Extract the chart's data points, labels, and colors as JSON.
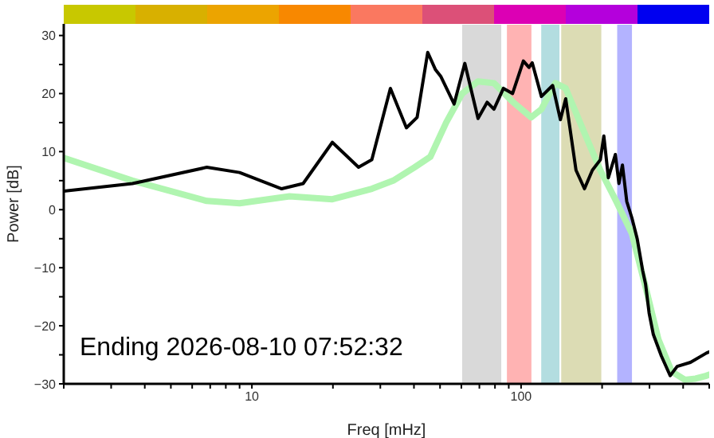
{
  "chart_data": {
    "type": "line",
    "xlabel": "Freq [mHz]",
    "ylabel": "Power [dB]",
    "log": "x",
    "xlim": [
      2,
      500
    ],
    "xticks": [
      {
        "value": 2,
        "label": null
      },
      {
        "value": 3,
        "label": null
      },
      {
        "value": 4,
        "label": null
      },
      {
        "value": 5,
        "label": null
      },
      {
        "value": 6,
        "label": null
      },
      {
        "value": 7,
        "label": null
      },
      {
        "value": 8,
        "label": null
      },
      {
        "value": 9,
        "label": null
      },
      10,
      {
        "value": 20,
        "label": null
      },
      {
        "value": 30,
        "label": null
      },
      {
        "value": 40,
        "label": null
      },
      {
        "value": 50,
        "label": null
      },
      {
        "value": 60,
        "label": null
      },
      {
        "value": 70,
        "label": null
      },
      {
        "value": 80,
        "label": null
      },
      {
        "value": 90,
        "label": null
      },
      100,
      {
        "value": 200,
        "label": null
      },
      {
        "value": 300,
        "label": null
      },
      {
        "value": 400,
        "label": null
      },
      {
        "value": 500,
        "label": null
      }
    ],
    "ylim": [
      -30,
      32
    ],
    "yticks": [
      -30,
      {
        "value": -25,
        "label": null
      },
      -20,
      {
        "value": -15,
        "label": null
      },
      -10,
      {
        "value": -5,
        "label": null
      },
      0,
      {
        "value": 5,
        "label": null
      },
      10,
      {
        "value": 15,
        "label": null
      },
      20,
      {
        "value": 25,
        "label": null
      },
      30
    ],
    "grid": false,
    "legend": false,
    "marker": "none",
    "line_style": "solid",
    "bands": [
      {
        "axis": "x",
        "from": 60,
        "to": 85,
        "color": "#d9d9d9"
      },
      {
        "axis": "x",
        "from": 88,
        "to": 110,
        "color": "#ffb3b3"
      },
      {
        "axis": "x",
        "from": 118,
        "to": 140,
        "color": "#b3dde0"
      },
      {
        "axis": "x",
        "from": 140,
        "to": 200,
        "color": "#dcdcb4"
      },
      {
        "axis": "x",
        "from": 226,
        "to": 260,
        "color": "#b3b3ff"
      }
    ],
    "series": [
      {
        "color": "#b0f5b0",
        "x": [
          2,
          3.6,
          6.8,
          9,
          13.8,
          19.9,
          27.9,
          33.5,
          40.2,
          46,
          52.7,
          60.4,
          69.2,
          79.3,
          93,
          109,
          119,
          134,
          146.5,
          172,
          197,
          226,
          258,
          290,
          324,
          363,
          406,
          445,
          488,
          500
        ],
        "values": [
          8.9,
          5,
          1.5,
          1.1,
          2.3,
          1.8,
          3.6,
          5,
          7.3,
          9.1,
          15,
          20,
          22.1,
          21.8,
          18.6,
          15.9,
          17.3,
          21.8,
          20.9,
          13.2,
          6.8,
          1.4,
          -4.1,
          -13.3,
          -22.4,
          -27.9,
          -29.3,
          -29.1,
          -28.6,
          -28.4
        ]
      },
      {
        "color": "#000000",
        "x": [
          2,
          3.6,
          6.8,
          9,
          12.9,
          15.5,
          19.9,
          24.9,
          27.9,
          32.7,
          37.5,
          41.1,
          45,
          48.1,
          50.4,
          56.4,
          61.8,
          69.2,
          74.8,
          79.3,
          86,
          93,
          102,
          107,
          110,
          119,
          131,
          140,
          146.5,
          160,
          172,
          184,
          197,
          203,
          211,
          224,
          231,
          238,
          247,
          258,
          270,
          283,
          290,
          299,
          310,
          332,
          358,
          380,
          426,
          488,
          500
        ],
        "values": [
          3.2,
          4.5,
          7.3,
          6.4,
          3.6,
          4.5,
          11.6,
          7.3,
          8.6,
          20.9,
          14.1,
          15.9,
          27.1,
          24.1,
          22.9,
          18.2,
          25.2,
          15.7,
          18.5,
          17.3,
          20.9,
          20,
          25.6,
          24.5,
          25.3,
          19.5,
          21.4,
          15.5,
          19.1,
          6.8,
          3.6,
          6.8,
          8.6,
          12.7,
          5.5,
          9.5,
          4.5,
          7.7,
          1.4,
          -1.4,
          -5,
          -10.5,
          -12.8,
          -17.8,
          -21.5,
          -25.2,
          -28.6,
          -27,
          -26.3,
          -24.7,
          -24.5
        ]
      }
    ],
    "annotations": [
      "Ending 2026-08-10 07:52:32"
    ]
  }
}
